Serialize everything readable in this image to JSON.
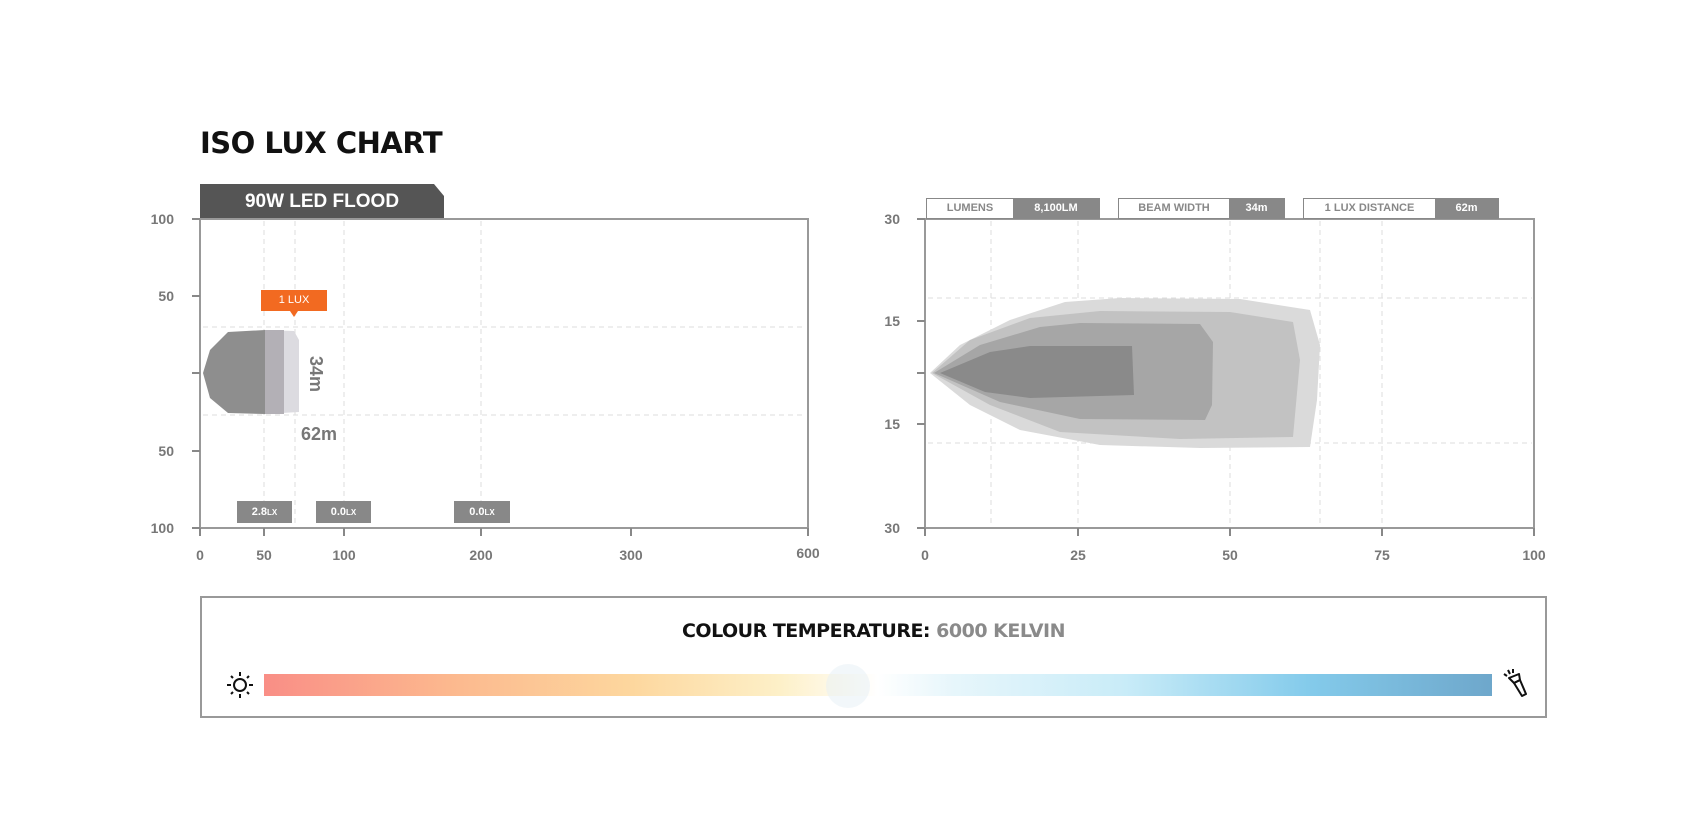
{
  "title": "ISO LUX CHART",
  "product_tab": "90W LED FLOOD",
  "chart_data": [
    {
      "type": "area",
      "title": "90W LED FLOOD",
      "x_ticks": [
        "0",
        "50",
        "100",
        "200",
        "300",
        "600"
      ],
      "y_ticks": [
        "100",
        "50",
        "",
        "50",
        "100"
      ],
      "annotations": {
        "one_lux_label": "1 LUX",
        "beam_width": "34m",
        "one_lux_distance": "62m"
      },
      "lux_readings": [
        {
          "value": "2.8",
          "unit": "LX"
        },
        {
          "value": "0.0",
          "unit": "LX"
        },
        {
          "value": "0.0",
          "unit": "LX"
        }
      ],
      "grid": true
    },
    {
      "type": "area",
      "x_ticks": [
        "0",
        "25",
        "50",
        "75",
        "100"
      ],
      "y_ticks": [
        "30",
        "15",
        "15",
        "30"
      ],
      "xlim": [
        0,
        100
      ],
      "grid": true,
      "stats": [
        {
          "label": "LUMENS",
          "value": "8,100LM"
        },
        {
          "label": "BEAM WIDTH",
          "value": "34m"
        },
        {
          "label": "1 LUX DISTANCE",
          "value": "62m"
        }
      ]
    }
  ],
  "colour_temperature": {
    "label": "COLOUR TEMPERATURE:",
    "value": "6000 KELVIN",
    "left_icon": "sun-icon",
    "right_icon": "flashlight-icon"
  },
  "colors": {
    "accent": "#f26a21",
    "label_bg": "#888888",
    "tab_bg": "#555555"
  }
}
